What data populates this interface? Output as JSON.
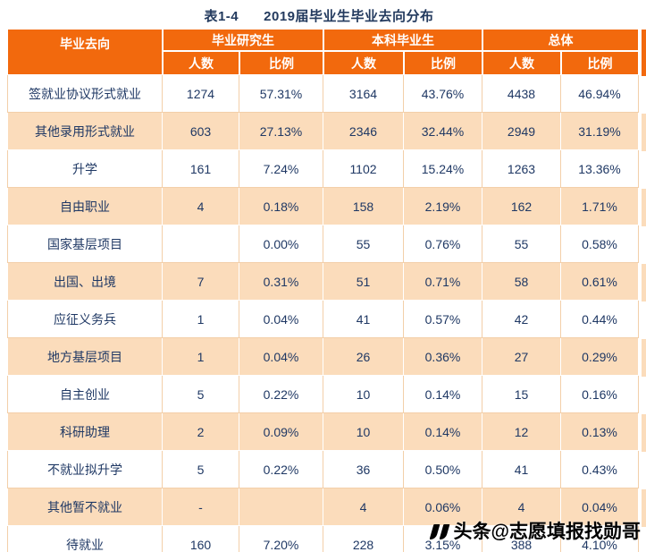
{
  "title": "表1-4      2019届毕业生毕业去向分布",
  "table": {
    "corner_label": "毕业去向",
    "groups": [
      {
        "label": "毕业研究生"
      },
      {
        "label": "本科毕业生"
      },
      {
        "label": "总体"
      }
    ],
    "subheaders": [
      "人数",
      "比例"
    ],
    "rows": [
      {
        "label": "签就业协议形式就业",
        "values": [
          "1274",
          "57.31%",
          "3164",
          "43.76%",
          "4438",
          "46.94%"
        ]
      },
      {
        "label": "其他录用形式就业",
        "values": [
          "603",
          "27.13%",
          "2346",
          "32.44%",
          "2949",
          "31.19%"
        ]
      },
      {
        "label": "升学",
        "values": [
          "161",
          "7.24%",
          "1102",
          "15.24%",
          "1263",
          "13.36%"
        ]
      },
      {
        "label": "自由职业",
        "values": [
          "4",
          "0.18%",
          "158",
          "2.19%",
          "162",
          "1.71%"
        ]
      },
      {
        "label": "国家基层项目",
        "values": [
          "",
          "0.00%",
          "55",
          "0.76%",
          "55",
          "0.58%"
        ]
      },
      {
        "label": "出国、出境",
        "values": [
          "7",
          "0.31%",
          "51",
          "0.71%",
          "58",
          "0.61%"
        ]
      },
      {
        "label": "应征义务兵",
        "values": [
          "1",
          "0.04%",
          "41",
          "0.57%",
          "42",
          "0.44%"
        ]
      },
      {
        "label": "地方基层项目",
        "values": [
          "1",
          "0.04%",
          "26",
          "0.36%",
          "27",
          "0.29%"
        ]
      },
      {
        "label": "自主创业",
        "values": [
          "5",
          "0.22%",
          "10",
          "0.14%",
          "15",
          "0.16%"
        ]
      },
      {
        "label": "科研助理",
        "values": [
          "2",
          "0.09%",
          "10",
          "0.14%",
          "12",
          "0.13%"
        ]
      },
      {
        "label": "不就业拟升学",
        "values": [
          "5",
          "0.22%",
          "36",
          "0.50%",
          "41",
          "0.43%"
        ]
      },
      {
        "label": "其他暂不就业",
        "values": [
          "-",
          "",
          "4",
          "0.06%",
          "4",
          "0.04%"
        ]
      },
      {
        "label": "待就业",
        "values": [
          "160",
          "7.20%",
          "228",
          "3.15%",
          "388",
          "4.10%"
        ]
      }
    ]
  },
  "watermark": {
    "icon": "toutiao-quote-logo",
    "text": "头条@志愿填报找勋哥"
  },
  "colors": {
    "header_bg": "#F2690D",
    "row_alt_bg": "#FBDCBB",
    "header_text": "#FFFFFF",
    "body_text": "#1F3864",
    "title_text": "#233A5E",
    "watermark_text": "#000000"
  }
}
